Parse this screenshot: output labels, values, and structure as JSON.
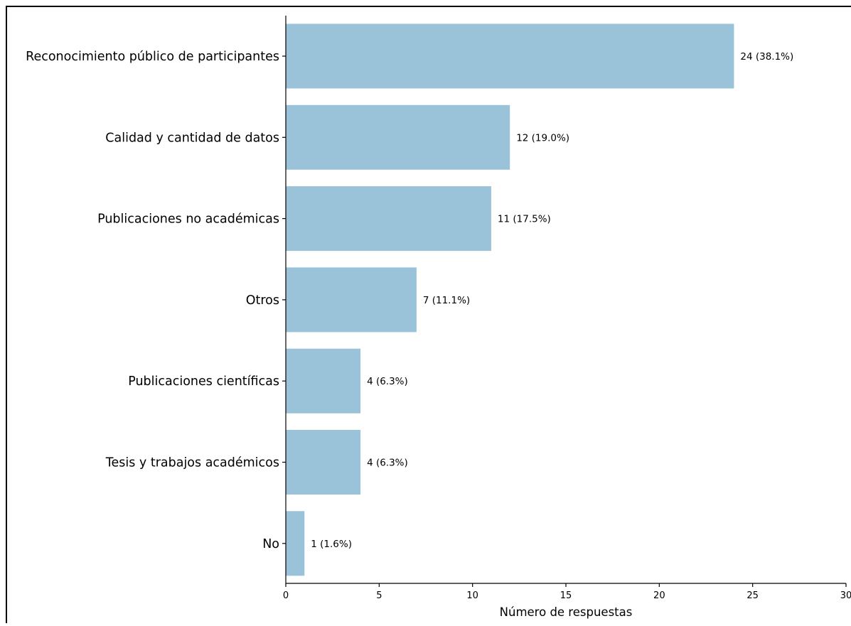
{
  "chart_data": {
    "type": "bar",
    "orientation": "horizontal",
    "categories": [
      "Reconocimiento público de participantes",
      "Calidad y cantidad de datos",
      "Publicaciones no académicas",
      "Otros",
      "Publicaciones científicas",
      "Tesis y trabajos académicos",
      "No"
    ],
    "values": [
      24,
      12,
      11,
      7,
      4,
      4,
      1
    ],
    "data_labels": [
      "24 (38.1%)",
      "12 (19.0%)",
      "11 (17.5%)",
      "7 (11.1%)",
      "4 (6.3%)",
      "4 (6.3%)",
      "1 (1.6%)"
    ],
    "title": "",
    "xlabel": "Número de respuestas",
    "ylabel": "",
    "xlim": [
      0,
      30
    ],
    "x_ticks": [
      0,
      5,
      10,
      15,
      20,
      25,
      30
    ],
    "grid": false,
    "legend": "none",
    "colors": {
      "bar": "#9ac3d9",
      "axis": "#000000",
      "text": "#000000"
    }
  }
}
